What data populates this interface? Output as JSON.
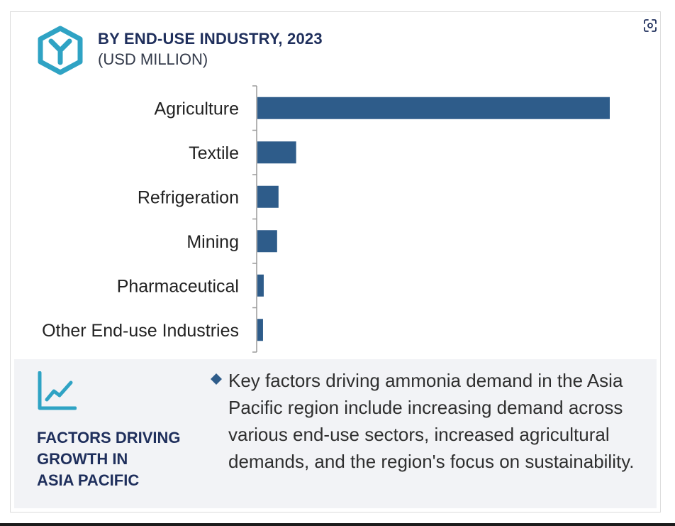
{
  "header": {
    "title": "BY END-USE INDUSTRY, 2023",
    "subtitle": "(USD MILLION)"
  },
  "icons": {
    "logo": "hexagon-y-logo-icon",
    "trend": "line-chart-icon",
    "bullet": "diamond-bullet-icon",
    "scan": "scan-icon"
  },
  "colors": {
    "bar": "#2e5c8a",
    "accent": "#2fa3c4",
    "title": "#1f2f5c"
  },
  "chart_data": {
    "type": "bar",
    "orientation": "horizontal",
    "categories": [
      "Agriculture",
      "Textile",
      "Refrigeration",
      "Mining",
      "Pharmaceutical",
      "Other End-use Industries"
    ],
    "values": [
      100,
      11,
      6,
      5.6,
      1.8,
      1.6
    ],
    "xlim": [
      0,
      100
    ],
    "grid": false,
    "legend": "none"
  },
  "factors": {
    "heading": "FACTORS DRIVING\nGROWTH IN\nASIA PACIFIC",
    "text": "Key factors driving ammonia demand in the Asia Pacific region include increasing demand across various end-use sectors, increased agricultural demands, and the region's focus on sustainability."
  }
}
